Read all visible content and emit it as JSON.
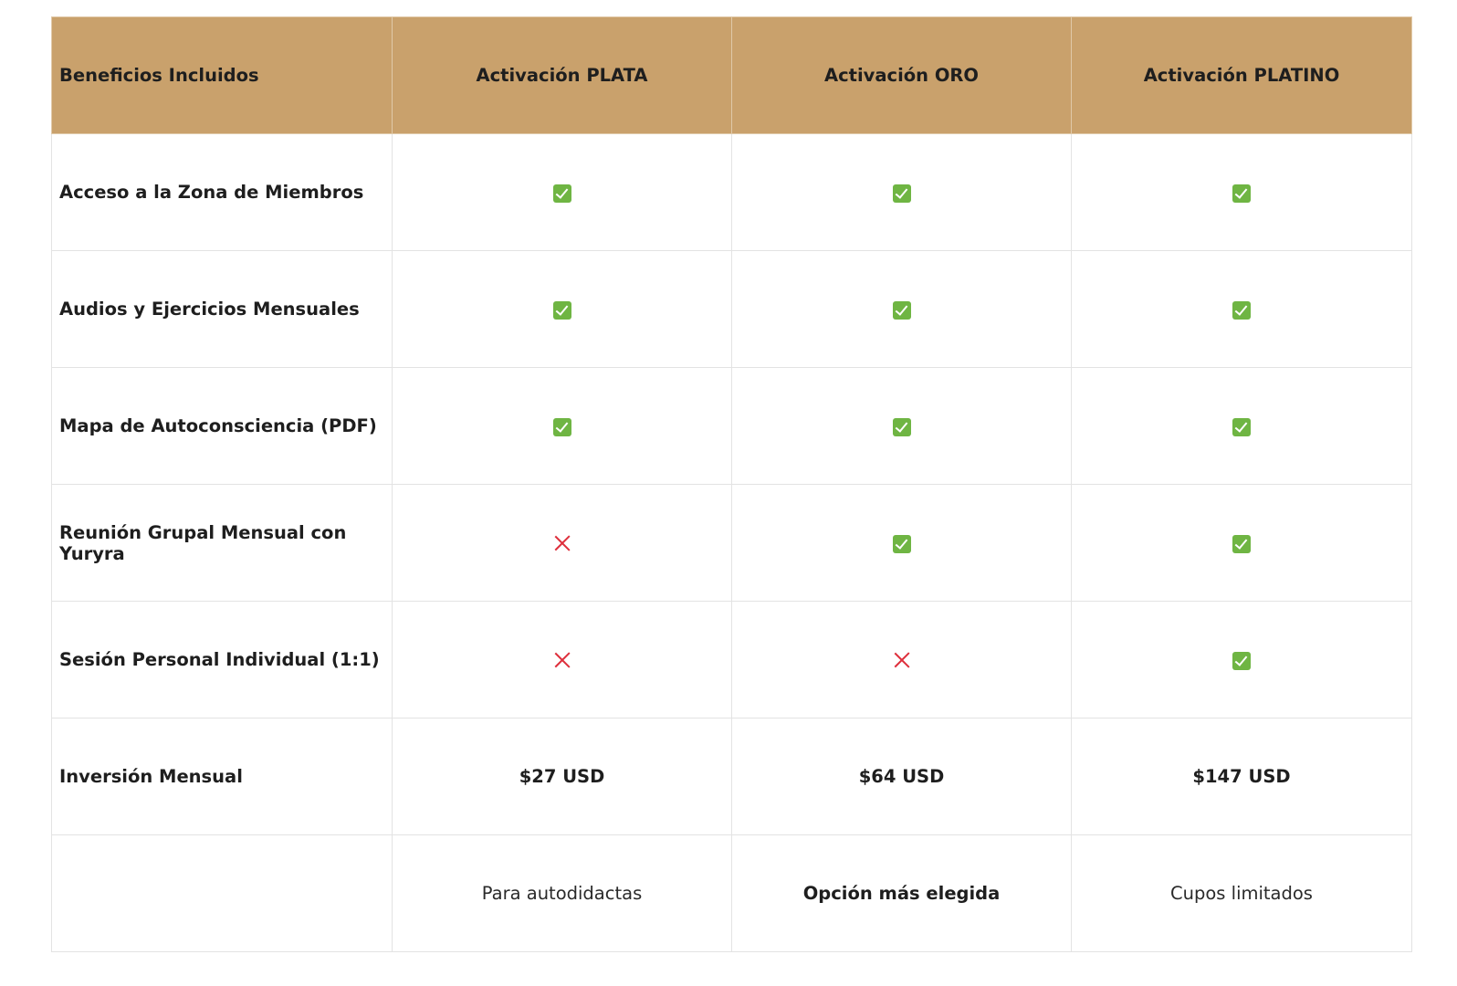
{
  "table": {
    "headers": [
      "Beneficios Incluidos",
      "Activación PLATA",
      "Activación ORO",
      "Activación PLATINO"
    ],
    "rows": [
      {
        "label": "Acceso a la Zona de Miembros",
        "values": [
          "check",
          "check",
          "check"
        ]
      },
      {
        "label": "Audios y Ejercicios Mensuales",
        "values": [
          "check",
          "check",
          "check"
        ]
      },
      {
        "label": "Mapa de Autoconsciencia (PDF)",
        "values": [
          "check",
          "check",
          "check"
        ]
      },
      {
        "label": "Reunión Grupal Mensual con Yuryra",
        "values": [
          "cross",
          "check",
          "check"
        ]
      },
      {
        "label": "Sesión Personal Individual (1:1)",
        "values": [
          "cross",
          "cross",
          "check"
        ]
      }
    ],
    "price_row": {
      "label": "Inversión Mensual",
      "values": [
        "$27 USD",
        "$64 USD",
        "$147 USD"
      ]
    },
    "note_row": {
      "label": "",
      "values": [
        "Para autodidactas",
        "Opción más elegida",
        "Cupos limitados"
      ]
    }
  },
  "icons": {
    "check": "check-mark-icon",
    "cross": "cross-mark-icon"
  },
  "colors": {
    "header_bg": "#c9a16c",
    "check": "#6fb543",
    "cross": "#de2f3c"
  }
}
